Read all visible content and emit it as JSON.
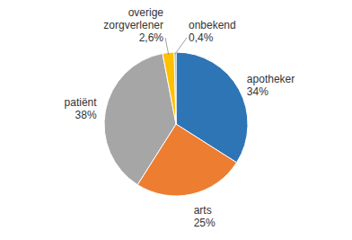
{
  "chart_data": {
    "type": "pie",
    "categories": [
      "apotheker",
      "arts",
      "patiënt",
      "overige\nzorgverlener",
      "onbekend"
    ],
    "values": [
      34,
      25,
      38,
      2.6,
      0.4
    ],
    "value_labels": [
      "34%",
      "25%",
      "38%",
      "2,6%",
      "0,4%"
    ],
    "colors": [
      "#2E75B6",
      "#ED7D31",
      "#A6A6A6",
      "#FFC000",
      "#70AD47"
    ],
    "data_labels": true
  }
}
